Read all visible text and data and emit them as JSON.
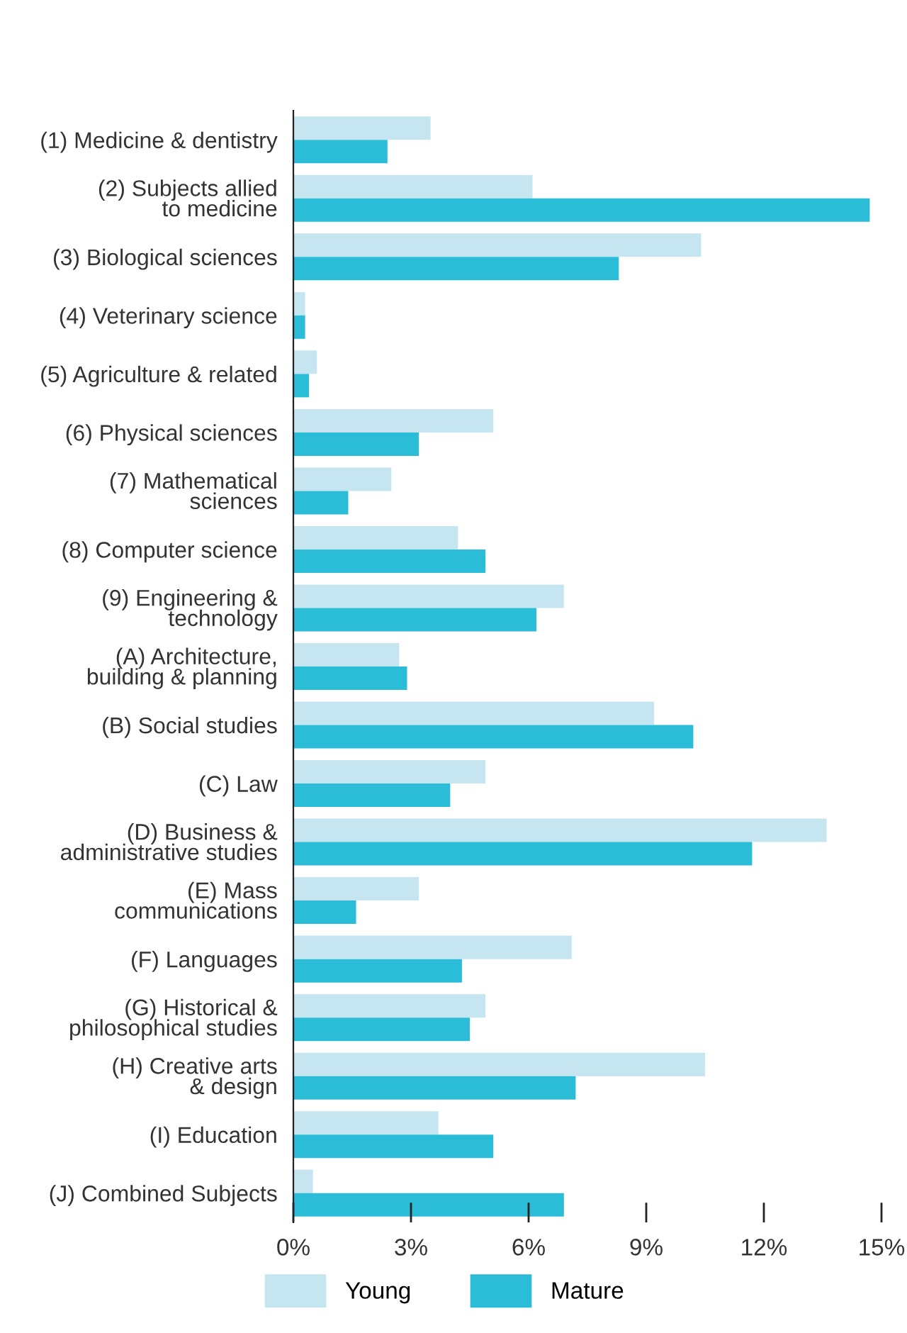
{
  "chart_data": {
    "type": "bar",
    "orientation": "horizontal",
    "categories": [
      "(1) Medicine & dentistry",
      "(2) Subjects allied\nto medicine",
      "(3) Biological sciences",
      "(4) Veterinary science",
      "(5) Agriculture & related",
      "(6) Physical sciences",
      "(7) Mathematical\nsciences",
      "(8) Computer science",
      "(9) Engineering &\ntechnology",
      "(A) Architecture,\nbuilding & planning",
      "(B) Social studies",
      "(C) Law",
      "(D) Business &\nadministrative studies",
      "(E) Mass\ncommunications",
      "(F) Languages",
      "(G) Historical &\nphilosophical studies",
      "(H) Creative arts\n& design",
      "(I) Education",
      "(J) Combined Subjects"
    ],
    "series": [
      {
        "name": "Young",
        "color": "#c5e6f0",
        "values": [
          3.5,
          6.1,
          10.4,
          0.3,
          0.6,
          5.1,
          2.5,
          4.2,
          6.9,
          2.7,
          9.2,
          4.9,
          13.6,
          3.2,
          7.1,
          4.9,
          10.5,
          3.7,
          0.5
        ]
      },
      {
        "name": "Mature",
        "color": "#2bbcd8",
        "values": [
          2.4,
          14.7,
          8.3,
          0.3,
          0.4,
          3.2,
          1.4,
          4.9,
          6.2,
          2.9,
          10.2,
          4.0,
          11.7,
          1.6,
          4.3,
          4.5,
          7.2,
          5.1,
          6.9
        ]
      }
    ],
    "xlim": [
      0,
      15
    ],
    "xticks": [
      {
        "value": 0,
        "label": "0%"
      },
      {
        "value": 3,
        "label": "3%"
      },
      {
        "value": 6,
        "label": "6%"
      },
      {
        "value": 9,
        "label": "9%"
      },
      {
        "value": 12,
        "label": "12%"
      },
      {
        "value": 15,
        "label": "15%"
      }
    ],
    "grid": false,
    "legend": "bottom"
  }
}
